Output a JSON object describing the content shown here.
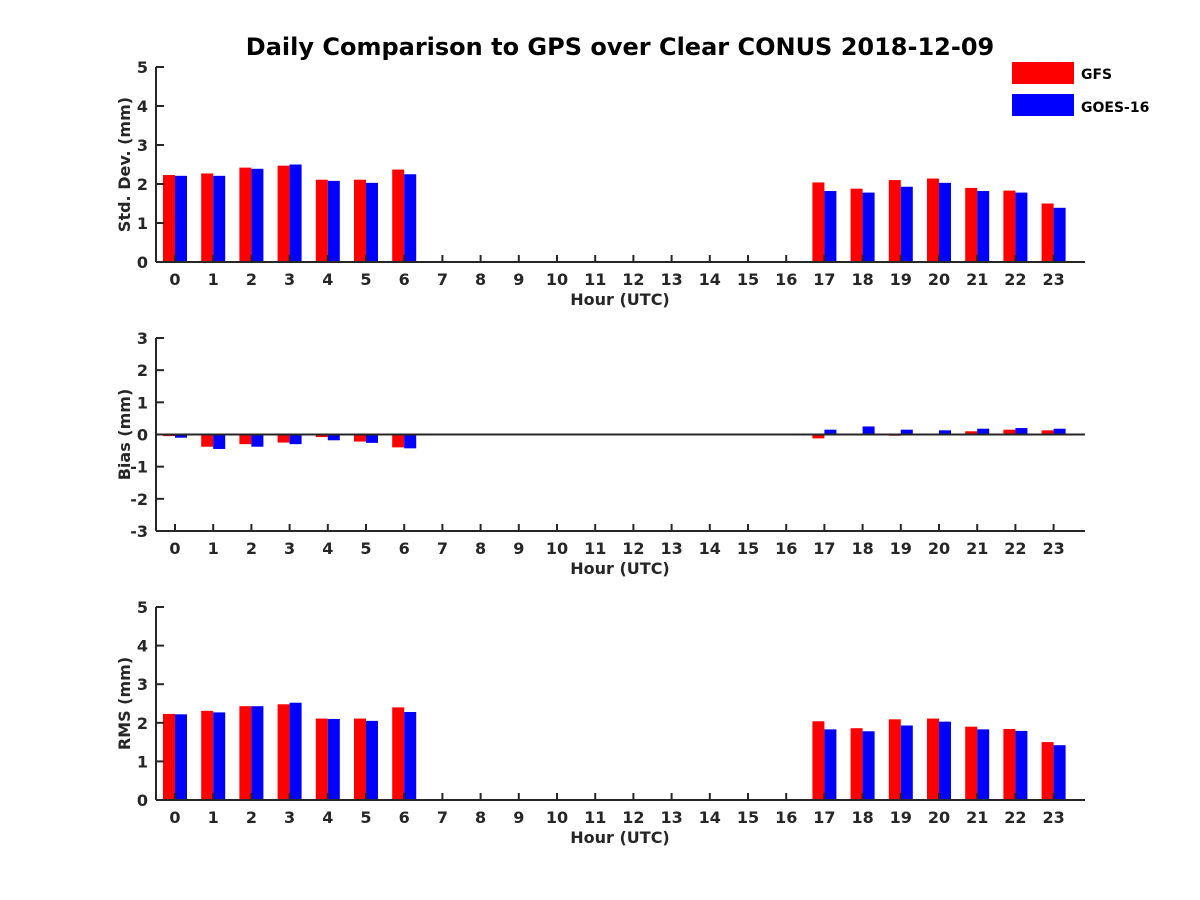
{
  "chart_data": [
    {
      "id": "std",
      "type": "bar",
      "title": "Daily Comparison to GPS over Clear CONUS 2018-12-09",
      "xlabel": "Hour (UTC)",
      "ylabel": "Std. Dev. (mm)",
      "ylim": [
        0,
        5
      ],
      "yticks": [
        0,
        1,
        2,
        3,
        4,
        5
      ],
      "categories": [
        "0",
        "1",
        "2",
        "3",
        "4",
        "5",
        "6",
        "7",
        "8",
        "9",
        "10",
        "11",
        "12",
        "13",
        "14",
        "15",
        "16",
        "17",
        "18",
        "19",
        "20",
        "21",
        "22",
        "23"
      ],
      "series": [
        {
          "name": "GFS",
          "values": [
            2.23,
            2.27,
            2.42,
            2.47,
            2.11,
            2.11,
            2.37,
            null,
            null,
            null,
            null,
            null,
            null,
            null,
            null,
            null,
            null,
            2.04,
            1.88,
            2.1,
            2.14,
            1.9,
            1.83,
            1.5
          ]
        },
        {
          "name": "GOES-16",
          "values": [
            2.21,
            2.21,
            2.39,
            2.5,
            2.08,
            2.03,
            2.25,
            null,
            null,
            null,
            null,
            null,
            null,
            null,
            null,
            null,
            null,
            1.82,
            1.78,
            1.93,
            2.03,
            1.82,
            1.78,
            1.39
          ]
        }
      ]
    },
    {
      "id": "bias",
      "type": "bar",
      "xlabel": "Hour (UTC)",
      "ylabel": "Bias (mm)",
      "ylim": [
        -3,
        3
      ],
      "yticks": [
        -3,
        -2,
        -1,
        0,
        1,
        2,
        3
      ],
      "categories": [
        "0",
        "1",
        "2",
        "3",
        "4",
        "5",
        "6",
        "7",
        "8",
        "9",
        "10",
        "11",
        "12",
        "13",
        "14",
        "15",
        "16",
        "17",
        "18",
        "19",
        "20",
        "21",
        "22",
        "23"
      ],
      "series": [
        {
          "name": "GFS",
          "values": [
            -0.05,
            -0.38,
            -0.3,
            -0.25,
            -0.08,
            -0.22,
            -0.4,
            null,
            null,
            null,
            null,
            null,
            null,
            null,
            null,
            null,
            null,
            -0.12,
            0.02,
            -0.04,
            0.02,
            0.1,
            0.15,
            0.13
          ]
        },
        {
          "name": "GOES-16",
          "values": [
            -0.1,
            -0.45,
            -0.38,
            -0.3,
            -0.18,
            -0.26,
            -0.43,
            null,
            null,
            null,
            null,
            null,
            null,
            null,
            null,
            null,
            null,
            0.15,
            0.25,
            0.15,
            0.13,
            0.18,
            0.2,
            0.18
          ]
        }
      ]
    },
    {
      "id": "rms",
      "type": "bar",
      "xlabel": "Hour (UTC)",
      "ylabel": "RMS (mm)",
      "ylim": [
        0,
        5
      ],
      "yticks": [
        0,
        1,
        2,
        3,
        4,
        5
      ],
      "categories": [
        "0",
        "1",
        "2",
        "3",
        "4",
        "5",
        "6",
        "7",
        "8",
        "9",
        "10",
        "11",
        "12",
        "13",
        "14",
        "15",
        "16",
        "17",
        "18",
        "19",
        "20",
        "21",
        "22",
        "23"
      ],
      "series": [
        {
          "name": "GFS",
          "values": [
            2.23,
            2.31,
            2.43,
            2.48,
            2.11,
            2.11,
            2.4,
            null,
            null,
            null,
            null,
            null,
            null,
            null,
            null,
            null,
            null,
            2.04,
            1.86,
            2.09,
            2.11,
            1.9,
            1.84,
            1.5
          ]
        },
        {
          "name": "GOES-16",
          "values": [
            2.22,
            2.27,
            2.43,
            2.52,
            2.1,
            2.05,
            2.28,
            null,
            null,
            null,
            null,
            null,
            null,
            null,
            null,
            null,
            null,
            1.83,
            1.78,
            1.93,
            2.03,
            1.83,
            1.79,
            1.42
          ]
        }
      ]
    }
  ],
  "legend": {
    "position": "top-right",
    "items": [
      {
        "label": "GFS",
        "color": "#ff0000"
      },
      {
        "label": "GOES-16",
        "color": "#0000ff"
      }
    ]
  },
  "colors": {
    "GFS": "#ff0000",
    "GOES-16": "#0000ff"
  }
}
